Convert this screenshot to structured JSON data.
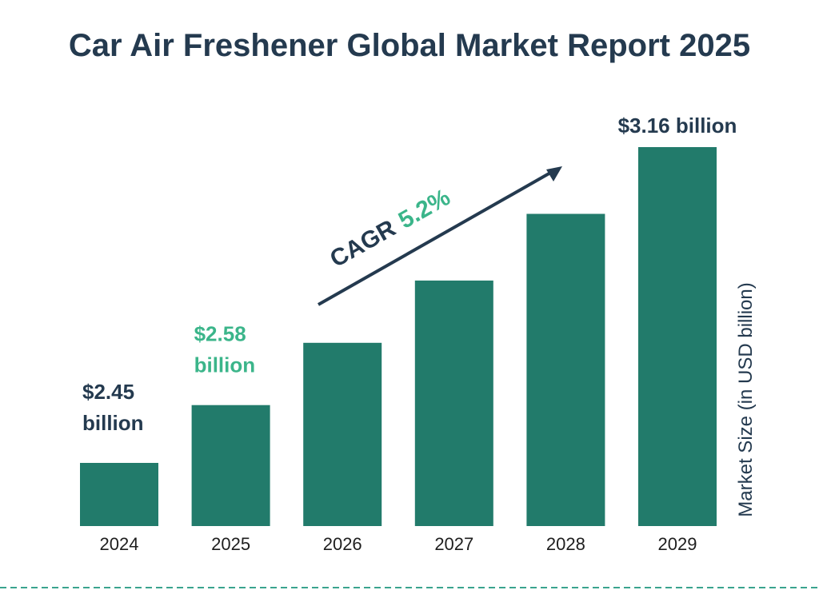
{
  "chart_data": {
    "type": "bar",
    "title": "Car Air Freshener Global Market Report 2025",
    "categories": [
      "2024",
      "2025",
      "2026",
      "2027",
      "2028",
      "2029"
    ],
    "values": [
      2.45,
      2.58,
      2.72,
      2.86,
      3.01,
      3.16
    ],
    "value_labels": [
      [
        "$2.45",
        "billion"
      ],
      [
        "$2.58",
        "billion"
      ],
      null,
      null,
      null,
      [
        "$3.16 billion"
      ]
    ],
    "ylabel": "Market Size (in USD billion)",
    "xlabel": "",
    "grid": false,
    "legend": "none",
    "annotation": {
      "prefix": "CAGR",
      "value": "5.2%"
    }
  },
  "colors": {
    "bar": "#227b6b",
    "title": "#243a4f",
    "label_dark": "#243a4f",
    "label_accent": "#3bb58a",
    "arrow": "#243a4f",
    "divider": "#3aa38e"
  }
}
